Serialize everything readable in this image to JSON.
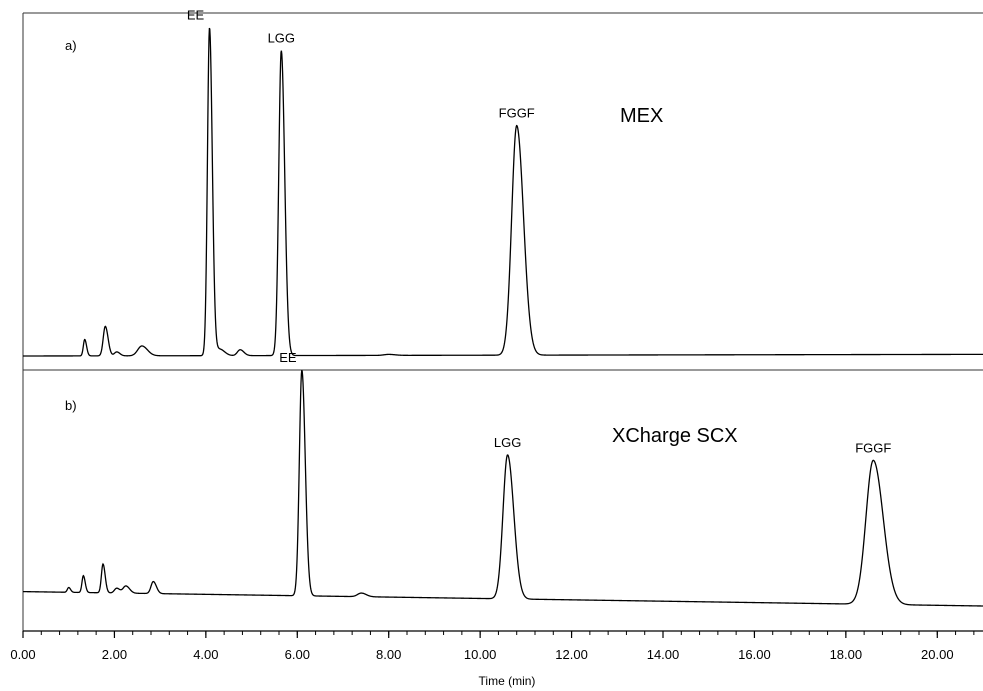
{
  "chart_data": {
    "type": "line",
    "xlabel": "Time (min)",
    "xlim": [
      0,
      21
    ],
    "major_ticks": [
      0,
      2,
      4,
      6,
      8,
      10,
      12,
      14,
      16,
      18,
      20
    ],
    "tick_labels": [
      "0.00",
      "2.00",
      "4.00",
      "6.00",
      "8.00",
      "10.00",
      "12.00",
      "14.00",
      "16.00",
      "18.00",
      "20.00"
    ],
    "minor_tick_step": 0.4,
    "panels": [
      {
        "panel_label": "a)",
        "column_label": "MEX",
        "baseline_start": 0.0,
        "baseline_end": 0.005,
        "peaks": [
          {
            "label": "",
            "t": 1.35,
            "h": 0.05,
            "w": 0.03
          },
          {
            "label": "",
            "t": 1.8,
            "h": 0.09,
            "w": 0.045
          },
          {
            "label": "",
            "t": 2.05,
            "h": 0.012,
            "w": 0.05
          },
          {
            "label": "",
            "t": 2.6,
            "h": 0.03,
            "w": 0.09
          },
          {
            "label": "EE",
            "t": 4.08,
            "h": 1.0,
            "w": 0.045
          },
          {
            "label": "",
            "t": 4.3,
            "h": 0.02,
            "w": 0.08
          },
          {
            "label": "",
            "t": 4.75,
            "h": 0.018,
            "w": 0.06
          },
          {
            "label": "LGG",
            "t": 5.65,
            "h": 0.93,
            "w": 0.055
          },
          {
            "label": "",
            "t": 8.0,
            "h": 0.003,
            "w": 0.1
          },
          {
            "label": "FGGF",
            "t": 10.8,
            "h": 0.7,
            "w": 0.11
          }
        ]
      },
      {
        "panel_label": "b)",
        "column_label": "XCharge SCX",
        "baseline_start": 0.06,
        "baseline_end": 0.0,
        "peaks": [
          {
            "label": "",
            "t": 1.0,
            "h": 0.02,
            "w": 0.03
          },
          {
            "label": "",
            "t": 1.32,
            "h": 0.07,
            "w": 0.03
          },
          {
            "label": "",
            "t": 1.75,
            "h": 0.12,
            "w": 0.035
          },
          {
            "label": "",
            "t": 2.05,
            "h": 0.02,
            "w": 0.05
          },
          {
            "label": "",
            "t": 2.25,
            "h": 0.03,
            "w": 0.06
          },
          {
            "label": "",
            "t": 2.85,
            "h": 0.05,
            "w": 0.05
          },
          {
            "label": "EE",
            "t": 6.1,
            "h": 0.94,
            "w": 0.055
          },
          {
            "label": "",
            "t": 7.4,
            "h": 0.015,
            "w": 0.08
          },
          {
            "label": "LGG",
            "t": 10.6,
            "h": 0.6,
            "w": 0.1
          },
          {
            "label": "FGGF",
            "t": 18.6,
            "h": 0.6,
            "w": 0.16
          }
        ]
      }
    ]
  }
}
